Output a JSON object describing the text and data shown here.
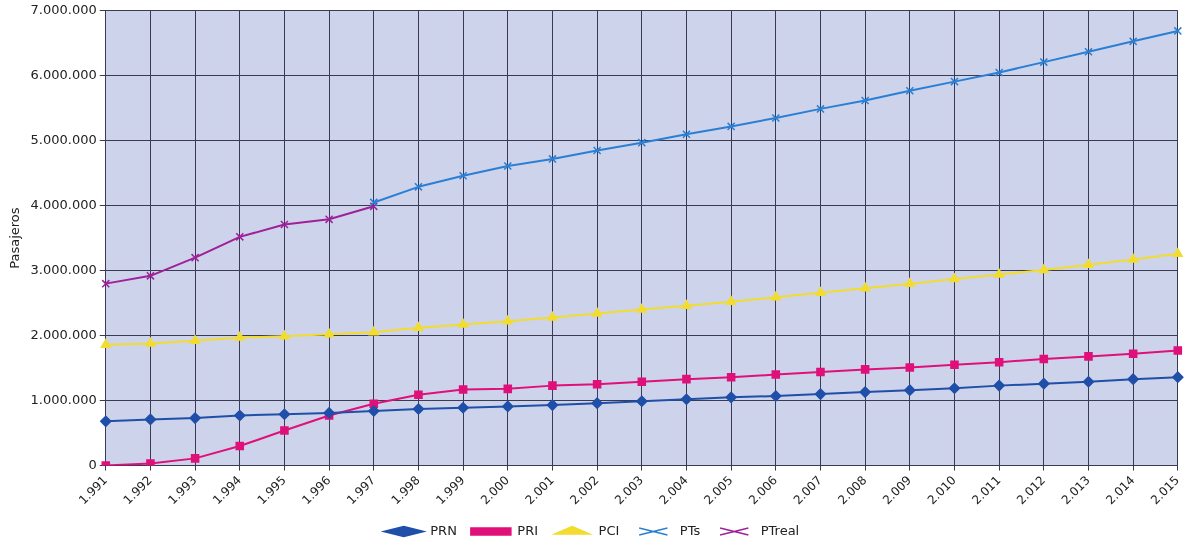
{
  "chart_data": {
    "type": "line",
    "ylabel": "Pasajeros",
    "categories": [
      "1.991",
      "1.992",
      "1.993",
      "1.994",
      "1.995",
      "1.996",
      "1.997",
      "1.998",
      "1.999",
      "2.000",
      "2.001",
      "2.002",
      "2.003",
      "2.004",
      "2.005",
      "2.006",
      "2.007",
      "2.008",
      "2.009",
      "2.010",
      "2.011",
      "2.012",
      "2.013",
      "2.014",
      "2.015"
    ],
    "series": [
      {
        "name": "PRN",
        "color": "#1f4fa8",
        "marker": "diamond",
        "values": [
          680000,
          710000,
          730000,
          770000,
          790000,
          810000,
          840000,
          870000,
          890000,
          910000,
          930000,
          960000,
          990000,
          1020000,
          1050000,
          1070000,
          1100000,
          1130000,
          1160000,
          1190000,
          1230000,
          1260000,
          1290000,
          1330000,
          1360000
        ]
      },
      {
        "name": "PRI",
        "color": "#e0107a",
        "marker": "square",
        "values": [
          0,
          30000,
          110000,
          300000,
          540000,
          770000,
          950000,
          1090000,
          1170000,
          1180000,
          1230000,
          1250000,
          1290000,
          1330000,
          1360000,
          1400000,
          1440000,
          1480000,
          1510000,
          1550000,
          1590000,
          1640000,
          1680000,
          1720000,
          1770000
        ]
      },
      {
        "name": "PCI",
        "color": "#f2dc2e",
        "marker": "triangle",
        "values": [
          1860000,
          1880000,
          1920000,
          1970000,
          1990000,
          2020000,
          2050000,
          2120000,
          2170000,
          2220000,
          2280000,
          2340000,
          2400000,
          2460000,
          2520000,
          2590000,
          2660000,
          2730000,
          2800000,
          2870000,
          2940000,
          3010000,
          3090000,
          3170000,
          3260000
        ]
      },
      {
        "name": "PTs",
        "color": "#2a7fd4",
        "marker": "cross",
        "values": [
          null,
          null,
          null,
          null,
          null,
          null,
          4050000,
          4290000,
          4460000,
          4610000,
          4720000,
          4850000,
          4970000,
          5100000,
          5220000,
          5350000,
          5490000,
          5620000,
          5770000,
          5910000,
          6050000,
          6210000,
          6370000,
          6530000,
          6690000
        ]
      },
      {
        "name": "PTreal",
        "color": "#a0209a",
        "marker": "cross",
        "values": [
          2800000,
          2920000,
          3200000,
          3520000,
          3710000,
          3790000,
          3990000,
          null,
          null,
          null,
          null,
          null,
          null,
          null,
          null,
          null,
          null,
          null,
          null,
          null,
          null,
          null,
          null,
          null,
          null
        ]
      }
    ],
    "ylim": [
      0,
      7000000
    ],
    "yticks": [
      0,
      {
        "value": 1000000,
        "label": "1.000.000"
      },
      {
        "value": 2000000,
        "label": "2.000.000"
      },
      {
        "value": 3000000,
        "label": "3.000.000"
      },
      {
        "value": 4000000,
        "label": "4.000.000"
      },
      {
        "value": 5000000,
        "label": "5.000.000"
      },
      {
        "value": 6000000,
        "label": "6.000.000"
      },
      {
        "value": 7000000,
        "label": "7.000.000"
      }
    ],
    "grid": true,
    "legend": "bottom"
  }
}
